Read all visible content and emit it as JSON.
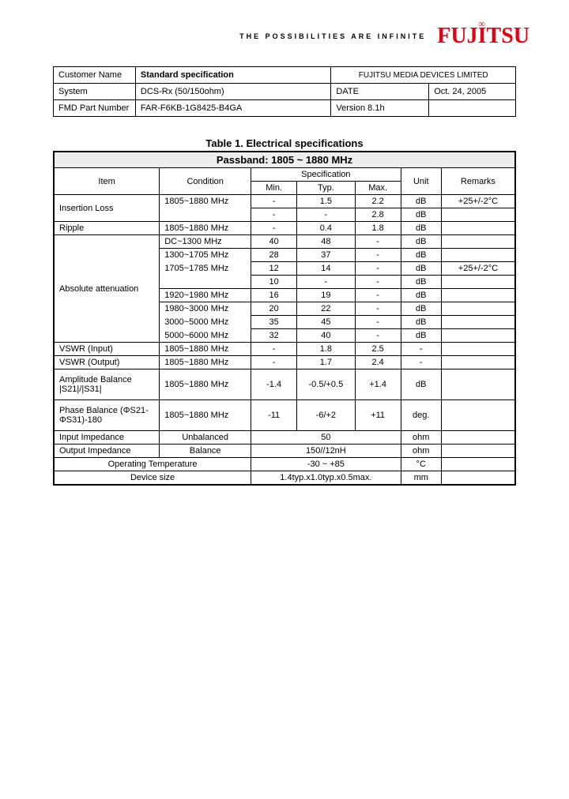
{
  "header": {
    "tagline": "THE POSSIBILITIES ARE INFINITE",
    "logo": "FUJITSU"
  },
  "info": {
    "rows": [
      {
        "l1": "Customer Name",
        "l2": "Standard specification",
        "l2_bold": true,
        "r1": "FUJITSU MEDIA DEVICES LIMITED",
        "r1_colspan": 2
      },
      {
        "l1": "System",
        "l2": "DCS-Rx (50/150ohm)",
        "r1": "DATE",
        "r2": "Oct. 24, 2005"
      },
      {
        "l1": "FMD Part Number",
        "l2": "FAR-F6KB-1G8425-B4GA",
        "r1": "Version 8.1h",
        "r2": ""
      }
    ],
    "colwidths": [
      "104",
      "178",
      "110",
      "94"
    ]
  },
  "spec": {
    "title": "Table 1. Electrical specifications",
    "passband": "Passband: 1805 ~ 1880 MHz",
    "head": {
      "item": "Item",
      "cond": "Condition",
      "spec": "Specification",
      "unit": "Unit",
      "rem": "Remarks",
      "min": "Min.",
      "typ": "Typ.",
      "max": "Max."
    },
    "rows": [
      {
        "item": "Insertion Loss",
        "cond": "1805~1880 MHz",
        "min": "-",
        "typ": "1.5",
        "max": "2.2",
        "unit": "dB",
        "rem": "+25+/-2°C",
        "dash": true
      },
      {
        "item": "",
        "cond": "",
        "min": "-",
        "typ": "-",
        "max": "2.8",
        "unit": "dB",
        "rem": ""
      },
      {
        "item": "Ripple",
        "cond": "1805~1880 MHz",
        "min": "-",
        "typ": "0.4",
        "max": "1.8",
        "unit": "dB",
        "rem": ""
      },
      {
        "item": "Absolute attenuation",
        "cond": "DC~1300 MHz",
        "min": "40",
        "typ": "48",
        "max": "-",
        "unit": "dB",
        "rem": "",
        "rowspan_item": 8
      },
      {
        "cond": "1300~1705 MHz",
        "min": "28",
        "typ": "37",
        "max": "-",
        "unit": "dB",
        "rem": "",
        "dash": true,
        "cond_nobottom": true
      },
      {
        "cond": "1705~1785 MHz",
        "min": "12",
        "typ": "14",
        "max": "-",
        "unit": "dB",
        "rem": "+25+/-2°C",
        "dash": true,
        "cond_nobottom": true,
        "cond_notop": true
      },
      {
        "cond": "",
        "min": "10",
        "typ": "-",
        "max": "-",
        "unit": "dB",
        "rem": "",
        "cond_notop": true
      },
      {
        "cond": "1920~1980 MHz",
        "min": "16",
        "typ": "19",
        "max": "-",
        "unit": "dB",
        "rem": ""
      },
      {
        "cond": "1980~3000 MHz",
        "min": "20",
        "typ": "22",
        "max": "-",
        "unit": "dB",
        "rem": "",
        "dash": true,
        "cond_nobottom": true
      },
      {
        "cond": "3000~5000 MHz",
        "min": "35",
        "typ": "45",
        "max": "-",
        "unit": "dB",
        "rem": "",
        "dash": true,
        "cond_notop": true,
        "cond_nobottom": true
      },
      {
        "cond": "5000~6000 MHz",
        "min": "32",
        "typ": "40",
        "max": "-",
        "unit": "dB",
        "rem": "",
        "cond_notop": true
      },
      {
        "item": "VSWR (Input)",
        "cond": "1805~1880 MHz",
        "min": "-",
        "typ": "1.8",
        "max": "2.5",
        "unit": "-",
        "rem": ""
      },
      {
        "item": "VSWR (Output)",
        "cond": "1805~1880 MHz",
        "min": "-",
        "typ": "1.7",
        "max": "2.4",
        "unit": "-",
        "rem": ""
      },
      {
        "item": "Amplitude Balance |S21|/|S31|",
        "cond": "1805~1880 MHz",
        "min": "-1.4",
        "typ": "-0.5/+0.5",
        "max": "+1.4",
        "unit": "dB",
        "rem": "",
        "tall": true
      },
      {
        "item": "Phase Balance (ΦS21-ΦS31)-180",
        "cond": "1805~1880 MHz",
        "min": "-11",
        "typ": "-6/+2",
        "max": "+11",
        "unit": "deg.",
        "rem": "",
        "tall": true
      },
      {
        "item": "Input Impedance",
        "cond": "Unbalanced",
        "val": "50",
        "unit": "ohm",
        "rem": "",
        "merged": true,
        "cond_center": true
      },
      {
        "item": "Output Impedance",
        "cond": "Balance",
        "val": "150//12nH",
        "unit": "ohm",
        "rem": "",
        "merged": true,
        "cond_center": true
      },
      {
        "item": "Operating Temperature",
        "val": "-30 ~ +85",
        "unit": "°C",
        "rem": "",
        "span2": true
      },
      {
        "item": "Device size",
        "val": "1.4typ.x1.0typ.x0.5max.",
        "unit": "mm",
        "rem": "",
        "span2": true
      }
    ],
    "colwidths": [
      "120",
      "104",
      "52",
      "66",
      "52",
      "46",
      "84"
    ]
  }
}
